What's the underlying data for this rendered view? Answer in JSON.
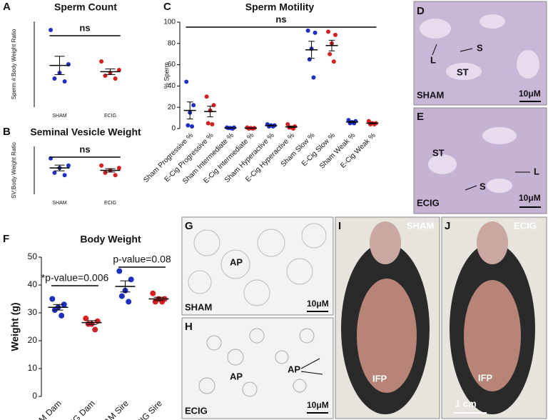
{
  "chart_data": [
    {
      "type": "dotplot",
      "panel": "A",
      "title": "Sperm Count",
      "y_label": "Sperm #:Body Weight Ratio",
      "categories": [
        "SHAM",
        "ECIG"
      ],
      "colors": [
        "#1f2fc0",
        "#d42020"
      ],
      "points": [
        [
          135,
          75,
          60,
          50,
          45
        ],
        [
          80,
          65,
          60,
          55,
          50
        ]
      ],
      "means": [
        73,
        62
      ],
      "errors": [
        16,
        5
      ],
      "ylim": [
        0,
        150
      ],
      "annotations": [
        "ns"
      ]
    },
    {
      "type": "dotplot",
      "panel": "B",
      "title": "Seminal Vesicle Weight",
      "y_label": "SV:Body Weight Ratio",
      "categories": [
        "SHAM",
        "ECIG"
      ],
      "colors": [
        "#1f2fc0",
        "#d42020"
      ],
      "points": [
        [
          15,
          12,
          11,
          9,
          8
        ],
        [
          12,
          11,
          10,
          9,
          8
        ]
      ],
      "means": [
        11,
        10
      ],
      "errors": [
        1.2,
        0.7
      ],
      "ylim": [
        0,
        20
      ],
      "annotations": [
        "ns"
      ]
    },
    {
      "type": "dotplot",
      "panel": "C",
      "title": "Sperm Motility",
      "y_label": "% Sperm",
      "categories": [
        "Sham Progressive %",
        "E-Cig Progressive %",
        "Sham Intermediate %",
        "E-Cig Intermediate %",
        "Sham Hyperactive %",
        "E-Cig Hyperactive %",
        "Sham Slow %",
        "E-Cig Slow %",
        "Sham Weak %",
        "E-Cig Weak %"
      ],
      "colors": [
        "#1f2fc0",
        "#d42020",
        "#1f2fc0",
        "#d42020",
        "#1f2fc0",
        "#d42020",
        "#1f2fc0",
        "#d42020",
        "#1f2fc0",
        "#d42020"
      ],
      "points": [
        [
          44,
          22,
          15,
          3,
          2
        ],
        [
          30,
          22,
          17,
          5,
          4
        ],
        [
          1,
          1,
          0.5,
          0.5,
          0
        ],
        [
          1,
          0.5,
          0.5,
          0,
          0
        ],
        [
          4,
          3,
          3,
          2,
          2
        ],
        [
          4,
          2,
          1,
          1,
          0
        ],
        [
          92,
          90,
          75,
          65,
          48
        ],
        [
          91,
          88,
          80,
          70,
          63
        ],
        [
          8,
          7,
          6,
          5,
          5
        ],
        [
          7,
          5,
          5,
          4,
          4
        ]
      ],
      "means": [
        17,
        16,
        0.6,
        0.4,
        2.8,
        1.6,
        74,
        78,
        6.2,
        5
      ],
      "errors": [
        8,
        5,
        0.2,
        0.2,
        0.4,
        0.7,
        8,
        5,
        0.6,
        0.5
      ],
      "ylim": [
        0,
        100
      ],
      "yticks": [
        0,
        20,
        40,
        60,
        80,
        100
      ],
      "annotations": [
        "ns"
      ]
    },
    {
      "type": "dotplot",
      "panel": "F",
      "title": "Body Weight",
      "y_label": "Weight (g)",
      "categories": [
        "SHAM Dam",
        "ECIG Dam",
        "SHAM Sire",
        "ECIG Sire"
      ],
      "colors": [
        "#1f2fc0",
        "#d42020",
        "#1f2fc0",
        "#d42020"
      ],
      "points": [
        [
          35,
          33,
          32,
          31,
          29
        ],
        [
          28,
          27,
          26,
          26,
          24
        ],
        [
          45,
          42,
          38,
          36,
          34
        ],
        [
          37,
          35,
          35,
          34,
          34
        ]
      ],
      "means": [
        32,
        26.5,
        39.5,
        35
      ],
      "errors": [
        1,
        0.7,
        2,
        0.6
      ],
      "ylim": [
        0,
        50
      ],
      "yticks": [
        0,
        10,
        20,
        30,
        40,
        50
      ],
      "annotations": [
        "*p-value=0.006",
        "p-value=0.08"
      ]
    }
  ],
  "image_panels": [
    {
      "panel": "D",
      "condition": "SHAM",
      "labels": [
        "L",
        "S",
        "ST"
      ],
      "scale": "10μM"
    },
    {
      "panel": "E",
      "condition": "ECIG",
      "labels": [
        "ST",
        "L",
        "S"
      ],
      "scale": "10μM"
    },
    {
      "panel": "G",
      "condition": "SHAM",
      "labels": [
        "AP"
      ],
      "scale": "10μM"
    },
    {
      "panel": "H",
      "condition": "ECIG",
      "labels": [
        "AP",
        "AP"
      ],
      "scale": "10μM"
    },
    {
      "panel": "I",
      "condition": "SHAM",
      "labels": [
        "IFP"
      ]
    },
    {
      "panel": "J",
      "condition": "ECIG",
      "labels": [
        "IFP"
      ],
      "scale": "1 cm"
    }
  ]
}
